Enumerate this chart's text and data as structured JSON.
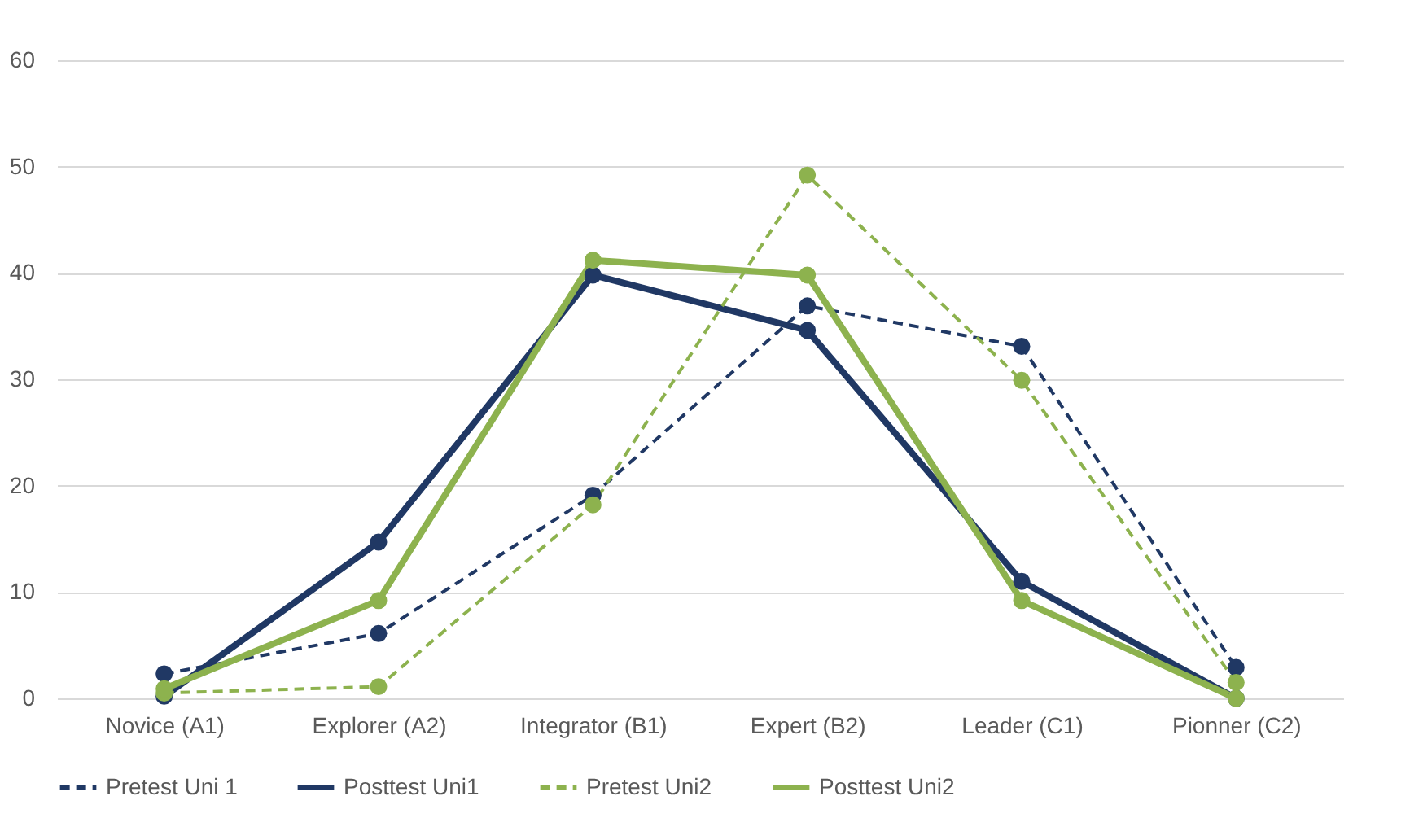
{
  "chart_data": {
    "type": "line",
    "categories": [
      "Novice (A1)",
      "Explorer (A2)",
      "Integrator (B1)",
      "Expert (B2)",
      "Leader (C1)",
      "Pionner (C2)"
    ],
    "series": [
      {
        "name": "Pretest Uni 1",
        "color": "#203864",
        "line_style": "dashed",
        "values": [
          2.3,
          6.1,
          19.1,
          36.9,
          33.1,
          2.9
        ]
      },
      {
        "name": "Posttest Uni1",
        "color": "#203864",
        "line_style": "solid",
        "values": [
          0.2,
          14.7,
          39.8,
          34.6,
          11.0,
          0
        ]
      },
      {
        "name": "Pretest Uni2",
        "color": "#8db24e",
        "line_style": "dashed",
        "values": [
          0.5,
          1.1,
          18.2,
          49.2,
          29.9,
          1.5
        ]
      },
      {
        "name": "Posttest Uni2",
        "color": "#8db24e",
        "line_style": "solid",
        "values": [
          0.9,
          9.2,
          41.2,
          39.8,
          9.2,
          0
        ]
      }
    ],
    "ylim": [
      0,
      60
    ],
    "yticks": [
      0,
      10,
      20,
      30,
      40,
      50,
      60
    ],
    "grid": "y",
    "legend": "bottom",
    "marker": "circle"
  }
}
